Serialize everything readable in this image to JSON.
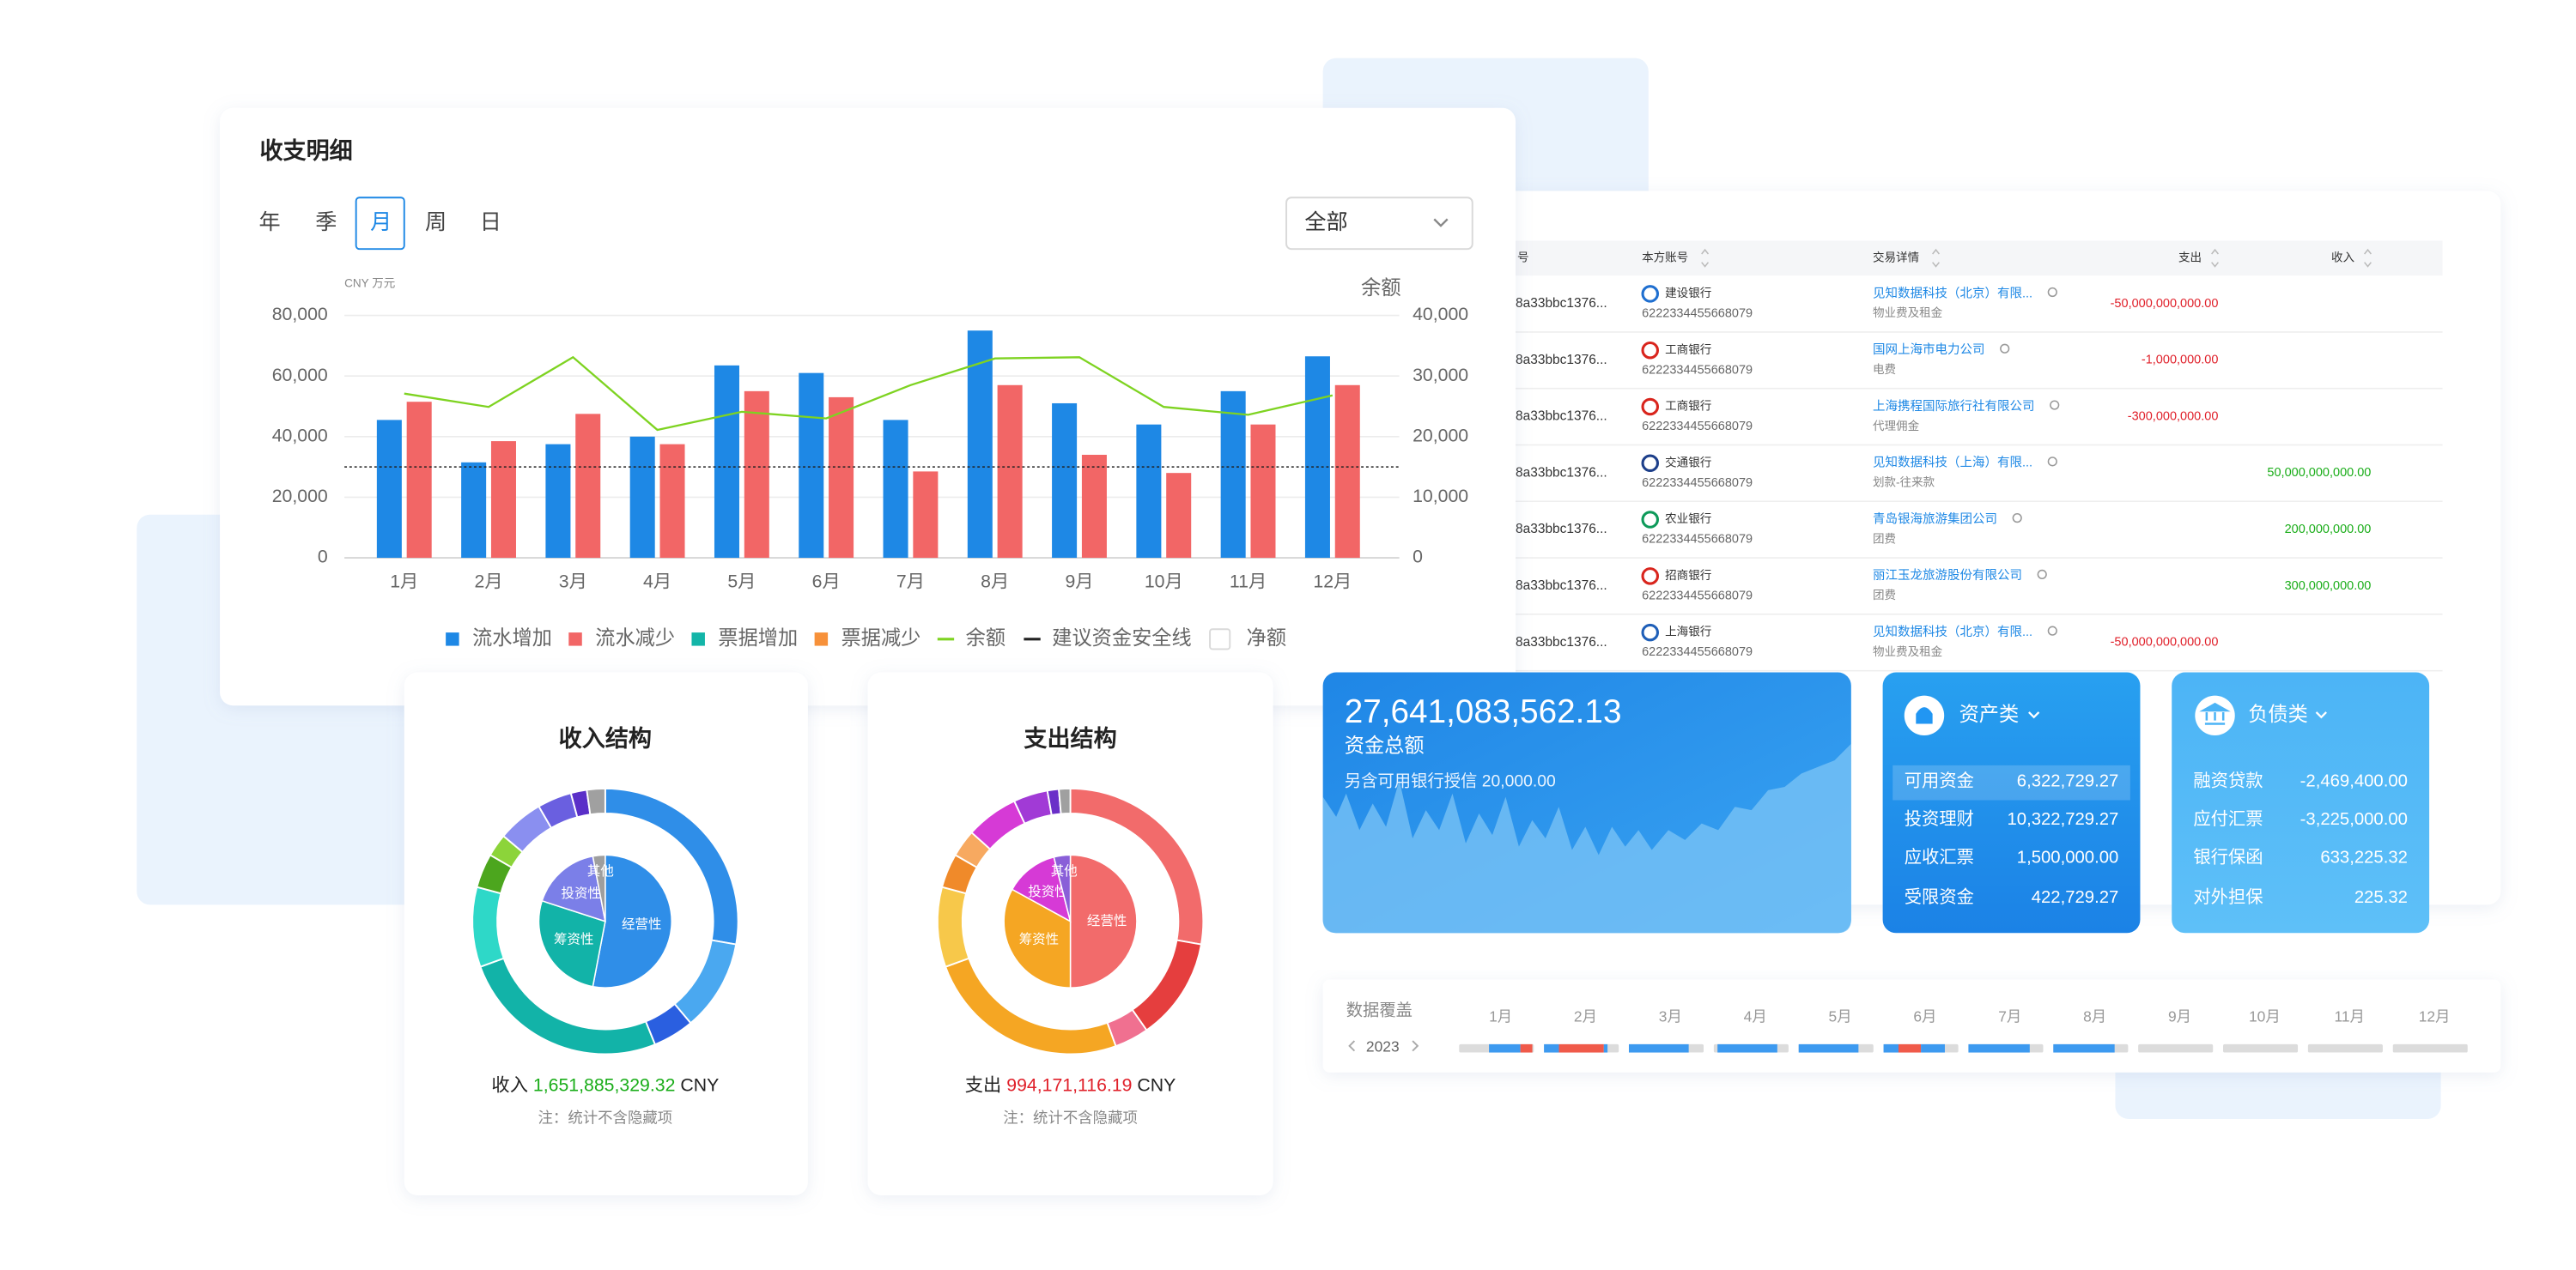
{
  "chart_data": [
    {
      "type": "bar",
      "title": "收支明细",
      "tabs": [
        "年",
        "季",
        "月",
        "周",
        "日"
      ],
      "selected_tab": 2,
      "filter": "全部",
      "y_unit": "CNY 万元",
      "y2_label": "余额",
      "categories": [
        "1月",
        "2月",
        "3月",
        "4月",
        "5月",
        "6月",
        "7月",
        "8月",
        "9月",
        "10月",
        "11月",
        "12月"
      ],
      "series": [
        {
          "name": "流水增加",
          "color": "#1e88e5",
          "kind": "bar",
          "values": [
            45500,
            31500,
            37500,
            40000,
            63500,
            61000,
            45500,
            75000,
            51000,
            44000,
            55000,
            66500
          ]
        },
        {
          "name": "流水减少",
          "color": "#f26666",
          "kind": "bar",
          "values": [
            51500,
            38500,
            47500,
            37500,
            55000,
            53000,
            28500,
            57000,
            34000,
            28000,
            44000,
            57000
          ]
        },
        {
          "name": "票据增加",
          "color": "#13b5a8",
          "kind": "bar",
          "values": [
            null,
            null,
            null,
            null,
            null,
            null,
            null,
            null,
            null,
            null,
            null,
            null
          ]
        },
        {
          "name": "票据减少",
          "color": "#f7913a",
          "kind": "bar",
          "values": [
            null,
            null,
            null,
            null,
            null,
            null,
            null,
            null,
            null,
            null,
            null,
            null
          ]
        },
        {
          "name": "余额",
          "color": "#7ed321",
          "kind": "line",
          "axis": "y2",
          "values": [
            27100,
            24900,
            33100,
            21100,
            24100,
            23000,
            28500,
            32900,
            33100,
            24900,
            23600,
            26800
          ]
        },
        {
          "name": "建议资金安全线",
          "color": "#222222",
          "kind": "threshold",
          "value": 30000
        },
        {
          "name": "净额",
          "color": "#d9d9d9",
          "kind": "box",
          "values": [
            null,
            null,
            null,
            null,
            null,
            null,
            null,
            null,
            null,
            null,
            null,
            null
          ]
        }
      ],
      "ylim": [
        0,
        80000
      ],
      "yticks": [
        0,
        {
          "value": 20000,
          "label": "20,000"
        },
        {
          "value": 40000,
          "label": "40,000"
        },
        {
          "value": 60000,
          "label": "60,000"
        },
        {
          "value": 80000,
          "label": "80,000"
        }
      ],
      "y2lim": [
        0,
        40000
      ],
      "y2ticks": [
        0,
        {
          "value": 10000,
          "label": "10,000"
        },
        {
          "value": 20000,
          "label": "20,000"
        },
        {
          "value": 30000,
          "label": "30,000"
        },
        {
          "value": 40000,
          "label": "40,000"
        }
      ],
      "grid": true
    },
    {
      "type": "pie",
      "title": "收入结构",
      "categories": [
        "经营性",
        "筹资性",
        "投资性",
        "其他"
      ],
      "values": [
        53,
        27,
        17,
        3
      ],
      "colors": [
        "#2f8ee8",
        "#12b3a8",
        "#7b7fe8",
        "#9e9e9e"
      ],
      "ring_values": [
        100,
        40,
        18,
        92,
        35,
        15,
        10,
        20,
        15,
        7,
        8
      ],
      "ring_colors": [
        "#2f8ee8",
        "#4aa8f0",
        "#2a5fe0",
        "#12b3a8",
        "#2ed8c8",
        "#4ca61e",
        "#8cd43a",
        "#8a8ff0",
        "#6a5fe0",
        "#5a2fc8",
        "#a0a0a0"
      ],
      "total_label": "收入",
      "total": "1,651,885,329.32",
      "total_color": "#1aad19",
      "unit": "CNY",
      "note": "注：统计不含隐藏项"
    },
    {
      "type": "pie",
      "title": "支出结构",
      "categories": [
        "经营性",
        "筹资性",
        "投资性",
        "其他"
      ],
      "values": [
        50,
        33,
        13,
        4
      ],
      "colors": [
        "#f26b6b",
        "#f5a623",
        "#d63ad6",
        "#8a5fd8"
      ],
      "ring_values": [
        100,
        45,
        15,
        90,
        35,
        15,
        12,
        23,
        15,
        5,
        5
      ],
      "ring_colors": [
        "#f26b6b",
        "#e53e3e",
        "#f07090",
        "#f5a623",
        "#f7c84a",
        "#f08a2a",
        "#f7a960",
        "#d63ad6",
        "#a13ad6",
        "#6a2fc8",
        "#a0a0a0"
      ],
      "total_label": "支出",
      "total": "994,171,116.19",
      "total_color": "#e0202a",
      "unit": "CNY",
      "note": "注：统计不含隐藏项"
    }
  ],
  "table": {
    "columns": [
      "号",
      "本方账号",
      "交易详情",
      "支出",
      "收入"
    ],
    "rows": [
      {
        "id": "8a33bbc1376...",
        "bank": "建设银行",
        "account": "6222334455668079",
        "detail": "见知数据科技（北京）有限...",
        "purpose": "物业费及租金",
        "expense": "-50,000,000,000.00",
        "income": null
      },
      {
        "id": "8a33bbc1376...",
        "bank": "工商银行",
        "account": "6222334455668079",
        "detail": "国网上海市电力公司",
        "purpose": "电费",
        "expense": "-1,000,000.00",
        "income": null
      },
      {
        "id": "8a33bbc1376...",
        "bank": "工商银行",
        "account": "6222334455668079",
        "detail": "上海携程国际旅行社有限公司",
        "purpose": "代理佣金",
        "expense": "-300,000,000.00",
        "income": null
      },
      {
        "id": "8a33bbc1376...",
        "bank": "交通银行",
        "account": "6222334455668079",
        "detail": "见知数据科技（上海）有限...",
        "purpose": "划款-往来款",
        "expense": null,
        "income": "50,000,000,000.00"
      },
      {
        "id": "8a33bbc1376...",
        "bank": "农业银行",
        "account": "6222334455668079",
        "detail": "青岛银海旅游集团公司",
        "purpose": "团费",
        "expense": null,
        "income": "200,000,000.00"
      },
      {
        "id": "8a33bbc1376...",
        "bank": "招商银行",
        "account": "6222334455668079",
        "detail": "丽江玉龙旅游股份有限公司",
        "purpose": "团费",
        "expense": null,
        "income": "300,000,000.00"
      },
      {
        "id": "8a33bbc1376...",
        "bank": "上海银行",
        "account": "6222334455668079",
        "detail": "见知数据科技（北京）有限...",
        "purpose": "物业费及租金",
        "expense": "-50,000,000,000.00",
        "income": null
      }
    ]
  },
  "funds": {
    "total": "27,641,083,562.13",
    "label": "资金总额",
    "credit": "另含可用银行授信 20,000.00"
  },
  "assets": {
    "title": "资产类",
    "items": [
      {
        "name": "可用资金",
        "amount": "6,322,729.27"
      },
      {
        "name": "投资理财",
        "amount": "10,322,729.27"
      },
      {
        "name": "应收汇票",
        "amount": "1,500,000.00"
      },
      {
        "name": "受限资金",
        "amount": "422,729.27"
      }
    ]
  },
  "liabilities": {
    "title": "负债类",
    "items": [
      {
        "name": "融资贷款",
        "amount": "-2,469,400.00"
      },
      {
        "name": "应付汇票",
        "amount": "-3,225,000.00"
      },
      {
        "name": "银行保函",
        "amount": "633,225.32"
      },
      {
        "name": "对外担保",
        "amount": "225.32"
      }
    ]
  },
  "coverage": {
    "title": "数据覆盖",
    "year": "2023",
    "months": [
      "1月",
      "2月",
      "3月",
      "4月",
      "5月",
      "6月",
      "7月",
      "8月",
      "9月",
      "10月",
      "11月",
      "12月"
    ]
  }
}
